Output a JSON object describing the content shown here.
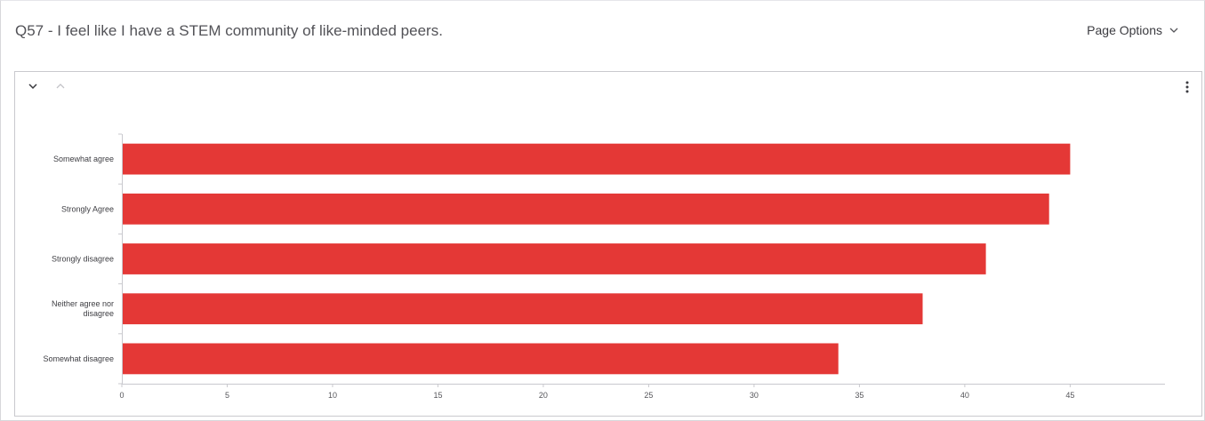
{
  "header": {
    "title": "Q57 - I feel like I have a STEM community of like-minded peers.",
    "page_options_label": "Page Options"
  },
  "card": {
    "icons": {
      "collapse": "chevron-down-icon",
      "expand": "chevron-up-icon",
      "menu": "more-vertical-icon"
    }
  },
  "colors": {
    "bar": "#e43836",
    "axis": "#c9c9ce"
  },
  "chart_data": {
    "type": "bar",
    "orientation": "horizontal",
    "categories": [
      [
        "Somewhat agree"
      ],
      [
        "Strongly Agree"
      ],
      [
        "Strongly disagree"
      ],
      [
        "Neither agree nor",
        "disagree"
      ],
      [
        "Somewhat disagree"
      ]
    ],
    "values": [
      45,
      44,
      41,
      38,
      34
    ],
    "xticks": [
      0,
      5,
      10,
      15,
      20,
      25,
      30,
      35,
      40,
      45
    ],
    "xlim": [
      0,
      49.5
    ],
    "title": "",
    "xlabel": "",
    "ylabel": "",
    "grid": false,
    "legend": false
  }
}
